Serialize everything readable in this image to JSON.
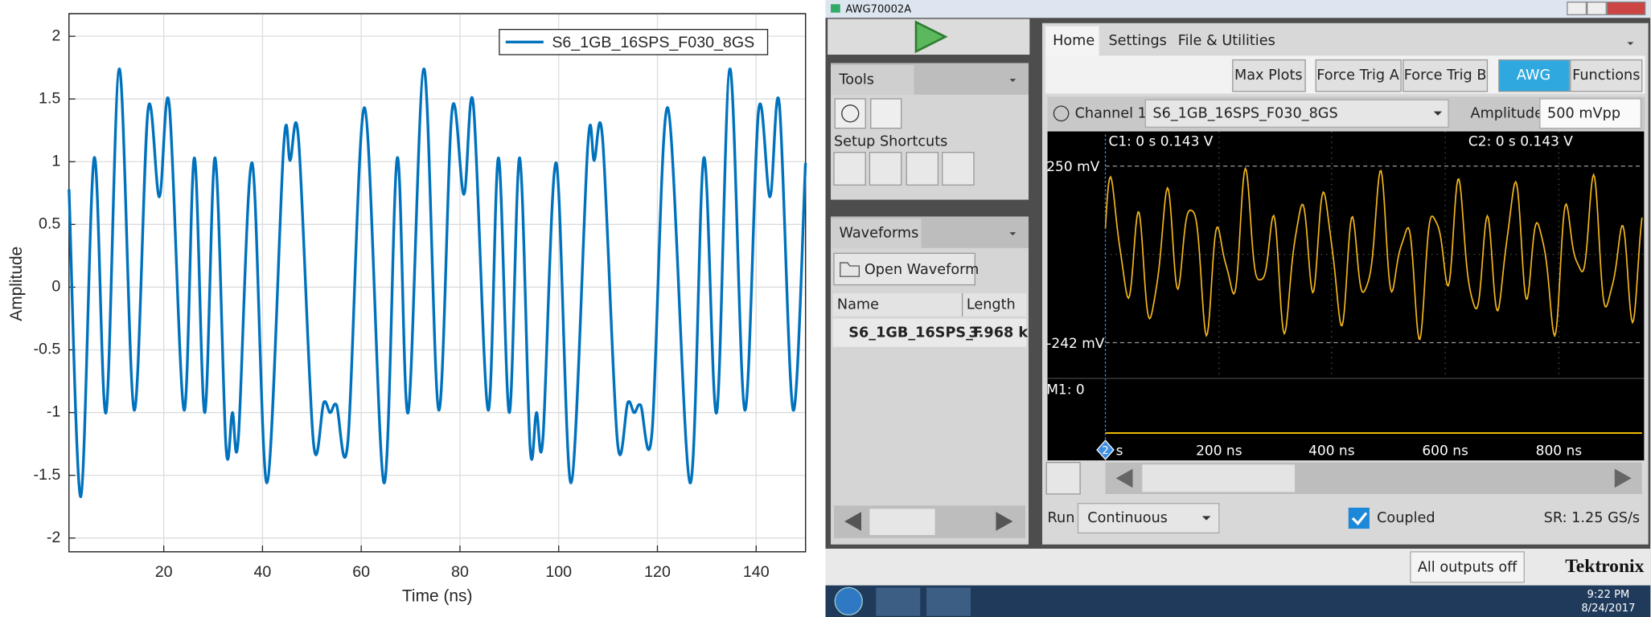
{
  "chart_data": {
    "type": "line",
    "x": [
      0.8,
      3.2,
      5.9,
      8.3,
      11.0,
      14.0,
      16.8,
      19.1,
      21.1,
      24.1,
      26.2,
      28.3,
      30.4,
      32.6,
      33.9,
      35.1,
      37.9,
      40.9,
      44.3,
      45.6,
      47.3,
      50.3,
      52.4,
      53.7,
      55.0,
      57.3,
      60.7,
      64.6,
      67.3,
      69.5,
      72.7,
      75.7,
      78.4,
      80.8,
      82.7,
      85.7,
      87.8,
      90.0,
      92.1,
      94.2,
      95.5,
      96.8,
      99.5,
      102.5,
      105.9,
      107.2,
      108.9,
      111.9,
      114.0,
      115.3,
      116.6,
      118.9,
      122.1,
      126.6,
      129.4,
      132.0,
      134.7,
      137.7,
      140.5,
      142.8,
      144.7,
      147.5,
      150.0
    ],
    "series": [
      {
        "name": "S6_1GB_16SPS_F030_8GS",
        "color": "#0072bd",
        "values": [
          0.78,
          -1.67,
          1.03,
          -1.0,
          1.74,
          -0.98,
          1.41,
          0.72,
          1.46,
          -0.98,
          1.03,
          -1.0,
          1.03,
          -1.27,
          -1.0,
          -1.21,
          0.99,
          -1.56,
          1.13,
          1.01,
          1.18,
          -1.23,
          -0.92,
          -1.0,
          -0.94,
          -1.23,
          1.43,
          -1.56,
          1.03,
          -1.0,
          1.74,
          -0.98,
          1.41,
          0.74,
          1.46,
          -0.98,
          1.03,
          -1.0,
          1.03,
          -1.27,
          -1.0,
          -1.21,
          0.99,
          -1.56,
          1.13,
          1.01,
          1.18,
          -1.23,
          -0.92,
          -1.0,
          -0.94,
          -1.16,
          1.43,
          -1.56,
          1.03,
          -1.0,
          1.74,
          -0.98,
          1.41,
          0.72,
          1.46,
          -0.98,
          0.99
        ]
      }
    ],
    "x_label": "Time (ns)",
    "y_label": "Amplitude",
    "xlim": [
      0.8,
      150
    ],
    "xticks": [
      20,
      40,
      60,
      80,
      100,
      120,
      140
    ],
    "ylim": [
      -2.11,
      2.18
    ],
    "yticks": [
      -2,
      -1.5,
      -1,
      -0.5,
      0,
      0.5,
      1,
      1.5,
      2
    ],
    "grid": true,
    "legend": "northeast"
  },
  "awg_ui": {
    "window_title": "AWG70002A",
    "tabs": [
      "Home",
      "Settings",
      "File & Utilities"
    ],
    "buttons": [
      "Max Plots",
      "Force Trig A",
      "Force Trig B",
      "AWG",
      "Functions"
    ],
    "tools": {
      "title": "Tools",
      "shortcuts": "Setup Shortcuts"
    },
    "waveforms": {
      "title": "Waveforms",
      "open": "Open Waveform",
      "headers": [
        "Name",
        "Length"
      ],
      "rows": [
        [
          "S6_1GB_16SPS_F",
          "3.968 k"
        ]
      ]
    },
    "channel": {
      "label": "Channel 1",
      "waveform": "S6_1GB_16SPS_F030_8GS",
      "amplitude_label": "Amplitude",
      "amplitude": "500 mVpp"
    },
    "scope": {
      "cursor1": "C1: 0 s 0.143 V",
      "cursor2": "C2: 0 s 0.143 V",
      "top_level": "250 mV",
      "bottom_level": "-242 mV",
      "marker": "M1: 0",
      "marker_index": "2",
      "time_labels": [
        "s",
        "200 ns",
        "400 ns",
        "600 ns",
        "800 ns"
      ]
    },
    "run": {
      "label": "Run",
      "mode": "Continuous",
      "coupled": "Coupled",
      "sample_rate": "SR: 1.25 GS/s"
    },
    "status": {
      "outputs": "All outputs off",
      "brand": "Tektronix"
    },
    "taskbar": {
      "time": "9:22 PM",
      "date": "8/24/2017"
    }
  }
}
